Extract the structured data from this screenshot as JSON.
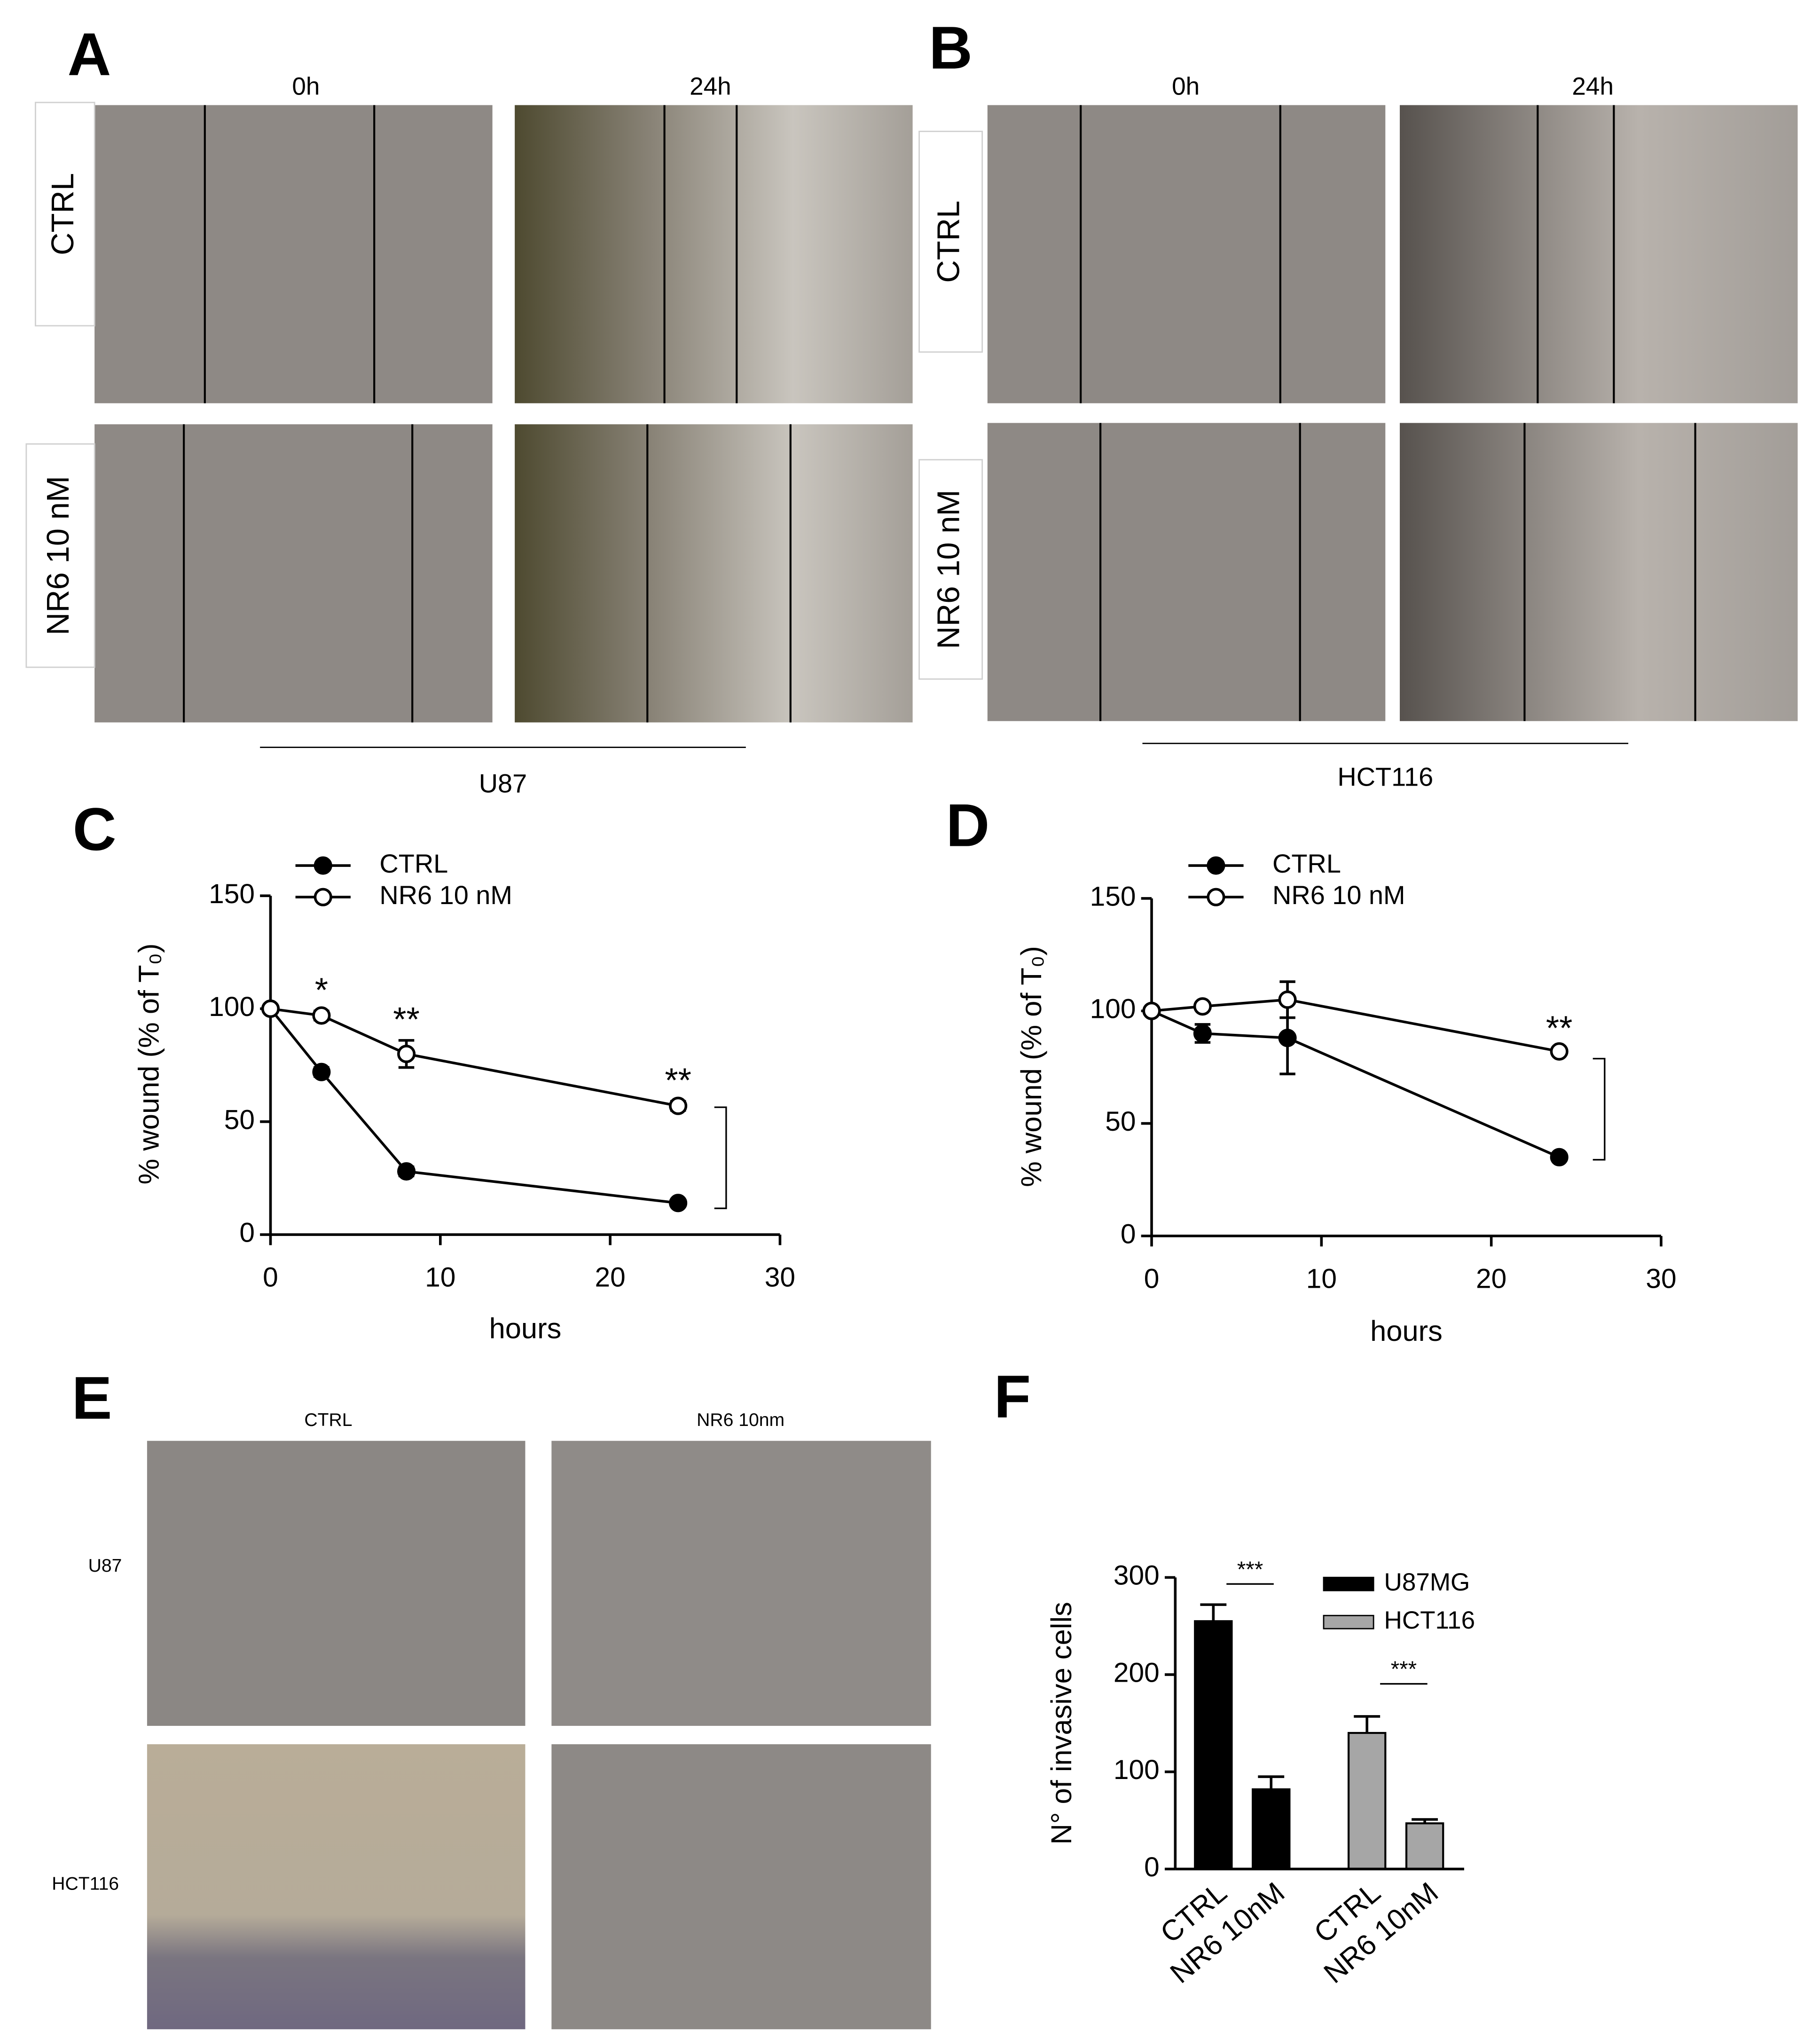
{
  "panels": {
    "A": {
      "letter": "A",
      "columns": [
        "0h",
        "24h"
      ],
      "rows": [
        "CTRL",
        "NR6 10 nM"
      ],
      "cell_line": "U87"
    },
    "B": {
      "letter": "B",
      "columns": [
        "0h",
        "24h"
      ],
      "rows": [
        "CTRL",
        "NR6 10 nM"
      ],
      "cell_line": "HCT116"
    },
    "E": {
      "letter": "E",
      "columns": [
        "CTRL",
        "NR6 10nm"
      ],
      "rows": [
        "U87",
        "HCT116"
      ]
    }
  },
  "chart_data": [
    {
      "type": "line",
      "letter": "C",
      "xlabel": "hours",
      "ylabel": "% wound (% of T₀)",
      "x": [
        0,
        3,
        8,
        24
      ],
      "series": [
        {
          "name": "CTRL",
          "color": "#000000",
          "marker_fill": "#000000",
          "values": [
            100,
            72,
            28,
            14
          ],
          "errors": [
            0,
            2,
            2,
            1
          ]
        },
        {
          "name": "NR6 10 nM",
          "color": "#000000",
          "marker_fill": "#ffffff",
          "values": [
            100,
            97,
            80,
            57
          ],
          "errors": [
            0,
            2,
            6,
            2
          ]
        }
      ],
      "annotations": [
        "*",
        "**",
        "**"
      ],
      "xlim": [
        0,
        30
      ],
      "xticks": [
        0,
        10,
        20,
        30
      ],
      "ylim": [
        0,
        150
      ],
      "yticks": [
        0,
        50,
        100,
        150
      ]
    },
    {
      "type": "line",
      "letter": "D",
      "xlabel": "hours",
      "ylabel": "% wound (% of T₀)",
      "x": [
        0,
        3,
        8,
        24
      ],
      "series": [
        {
          "name": "CTRL",
          "color": "#000000",
          "marker_fill": "#000000",
          "values": [
            100,
            90,
            88,
            35
          ],
          "errors": [
            0,
            4,
            16,
            1
          ]
        },
        {
          "name": "NR6 10 nM",
          "color": "#000000",
          "marker_fill": "#ffffff",
          "values": [
            100,
            102,
            105,
            82
          ],
          "errors": [
            0,
            1,
            8,
            1
          ]
        }
      ],
      "annotations": [
        "**"
      ],
      "xlim": [
        0,
        30
      ],
      "xticks": [
        0,
        10,
        20,
        30
      ],
      "ylim": [
        0,
        150
      ],
      "yticks": [
        0,
        50,
        100,
        150
      ]
    },
    {
      "type": "bar",
      "letter": "F",
      "ylabel": "N° of invasive cells",
      "categories": [
        "CTRL",
        "NR6 10nM",
        "CTRL",
        "NR6 10nM"
      ],
      "series": [
        {
          "name": "U87MG",
          "color": "#000000",
          "values": [
            255,
            82,
            null,
            null
          ],
          "errors": [
            17,
            13,
            null,
            null
          ]
        },
        {
          "name": "HCT116",
          "color": "#a6a6a6",
          "values": [
            null,
            null,
            140,
            47
          ],
          "errors": [
            null,
            null,
            17,
            4
          ]
        }
      ],
      "annotations": [
        "***",
        "***"
      ],
      "ylim": [
        0,
        300
      ],
      "yticks": [
        0,
        100,
        200,
        300
      ]
    }
  ]
}
